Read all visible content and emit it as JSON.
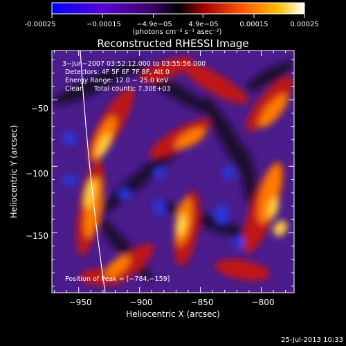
{
  "chart_data": {
    "type": "heatmap",
    "title": "Reconstructed RHESSI Image",
    "xlabel": "Heliocentric X (arcsec)",
    "ylabel": "Heliocentric Y (arcsec)",
    "xlim": [
      -972,
      -773
    ],
    "ylim": [
      -195,
      -13
    ],
    "xticks": [
      -950,
      -900,
      -850,
      -800
    ],
    "yticks": [
      -50,
      -100,
      -150
    ],
    "xtick_labels": [
      "−950",
      "−900",
      "−850",
      "−800"
    ],
    "ytick_labels": [
      "−50",
      "−100",
      "−150"
    ],
    "colorbar": {
      "range": [
        -0.00025,
        0.00025
      ],
      "tick_labels": [
        "-0.00025",
        "−0.00015",
        "−4.9e−05",
        "4.9e−05",
        "0.00015",
        "0.00025"
      ],
      "colors": [
        "#0000ff",
        "#6a00c8",
        "#000000",
        "#cc2200",
        "#ff8800",
        "#ffffff"
      ]
    },
    "units_label": "(photons cm⁻² s⁻¹ asec⁻²)",
    "annotations": [
      "3−Jun−2007 03:52:12.000 to 03:55:56.000",
      "Detectors: 4F 5F 6F 7F 8F, Att 0",
      "Energy Range: 12.0 − 25.0 keV",
      "Clean     Total counts: 7.30E+03"
    ],
    "peak_label": "Position of Peak = [−784,−159]",
    "peak": [
      -784,
      -159
    ],
    "grid": false
  },
  "footer": {
    "timestamp": "25-Jul-2013 10:33"
  },
  "colors": {
    "background": "#000000",
    "limb_line": "#ffffff",
    "frame": "#ffffff"
  }
}
